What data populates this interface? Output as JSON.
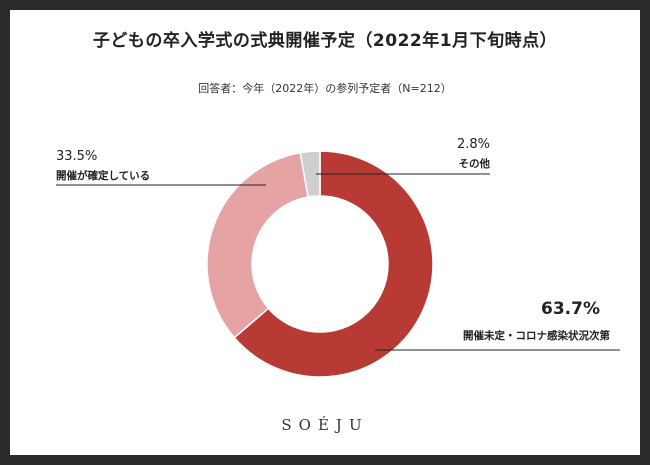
{
  "title": "子どもの卒入学式の式典開催予定（2022年1月下旬時点）",
  "subtitle": "回答者：今年（2022年）の参列予定者（N=212）",
  "brand": "SOÉJU",
  "chart_data": {
    "type": "pie",
    "variant": "donut",
    "start": "12 o'clock, clockwise",
    "slices": [
      {
        "label": "開催未定・コロナ感染状況次第",
        "value": 63.7,
        "value_label": "63.7%",
        "color": "#b83a35"
      },
      {
        "label": "開催が確定している",
        "value": 33.5,
        "value_label": "33.5%",
        "color": "#e6a3a3"
      },
      {
        "label": "その他",
        "value": 2.8,
        "value_label": "2.8%",
        "color": "#cfcfcf"
      }
    ]
  }
}
